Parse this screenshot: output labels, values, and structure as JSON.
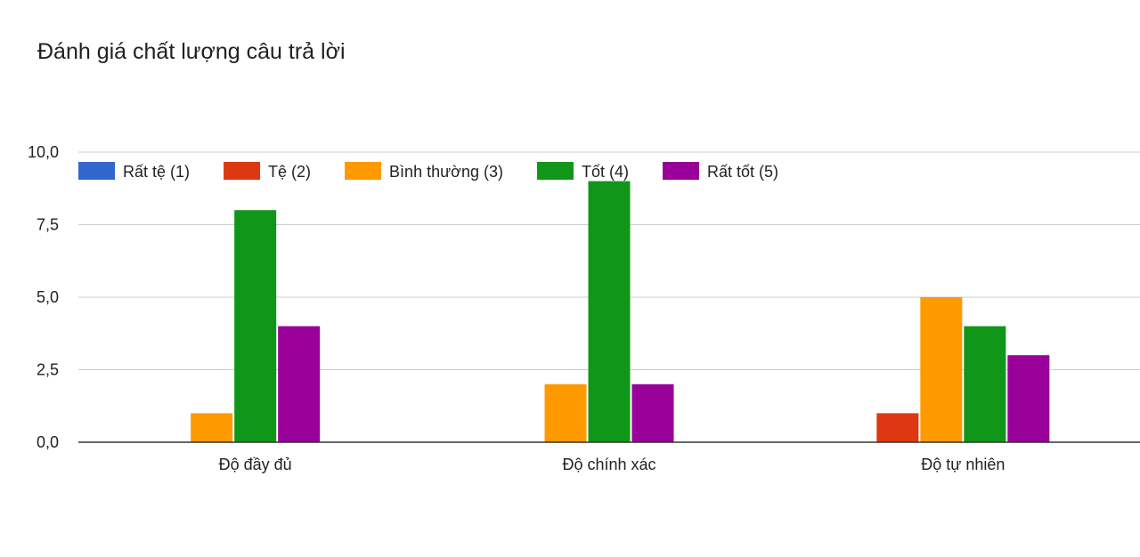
{
  "chart_data": {
    "type": "bar",
    "title": "Đánh giá chất lượng câu trả lời",
    "categories": [
      "Độ đầy đủ",
      "Độ chính xác",
      "Độ tự nhiên"
    ],
    "series": [
      {
        "name": "Rất tệ (1)",
        "color": "#3366cc",
        "values": [
          0,
          0,
          0
        ]
      },
      {
        "name": "Tệ (2)",
        "color": "#dc3912",
        "values": [
          0,
          0,
          1
        ]
      },
      {
        "name": "Bình thường (3)",
        "color": "#ff9900",
        "values": [
          1,
          2,
          5
        ]
      },
      {
        "name": "Tốt (4)",
        "color": "#109618",
        "values": [
          8,
          9,
          4
        ]
      },
      {
        "name": "Rất tốt (5)",
        "color": "#990099",
        "values": [
          4,
          2,
          3
        ]
      }
    ],
    "ylim": [
      0,
      10
    ],
    "yticks": [
      0,
      2.5,
      5,
      7.5,
      10
    ],
    "ytick_labels": [
      "0,0",
      "2,5",
      "5,0",
      "7,5",
      "10,0"
    ],
    "grid": true,
    "legend_position": "top",
    "xlabel": "",
    "ylabel": ""
  }
}
